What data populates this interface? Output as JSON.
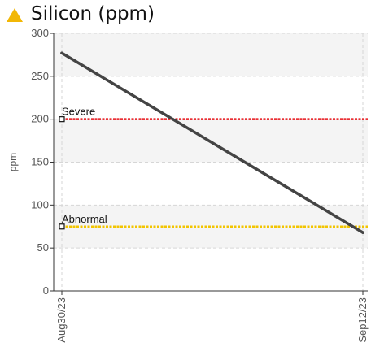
{
  "chart_data": {
    "type": "line",
    "title": "Silicon (ppm)",
    "ylabel": "ppm",
    "xlabel": "",
    "ylim": [
      0,
      300
    ],
    "yticks": [
      0,
      50,
      100,
      150,
      200,
      250,
      300
    ],
    "categories": [
      "Aug30/23",
      "Sep12/23"
    ],
    "series": [
      {
        "values": [
          277,
          68
        ],
        "color": "#444444"
      }
    ],
    "thresholds": [
      {
        "label": "Severe",
        "value": 200,
        "color": "#e8141a"
      },
      {
        "label": "Abnormal",
        "value": 75,
        "color": "#f2c500"
      }
    ],
    "grid": true,
    "band_color": "#f4f4f4",
    "title_icon": "warning-triangle-icon",
    "title_icon_color": "#f2b705"
  }
}
